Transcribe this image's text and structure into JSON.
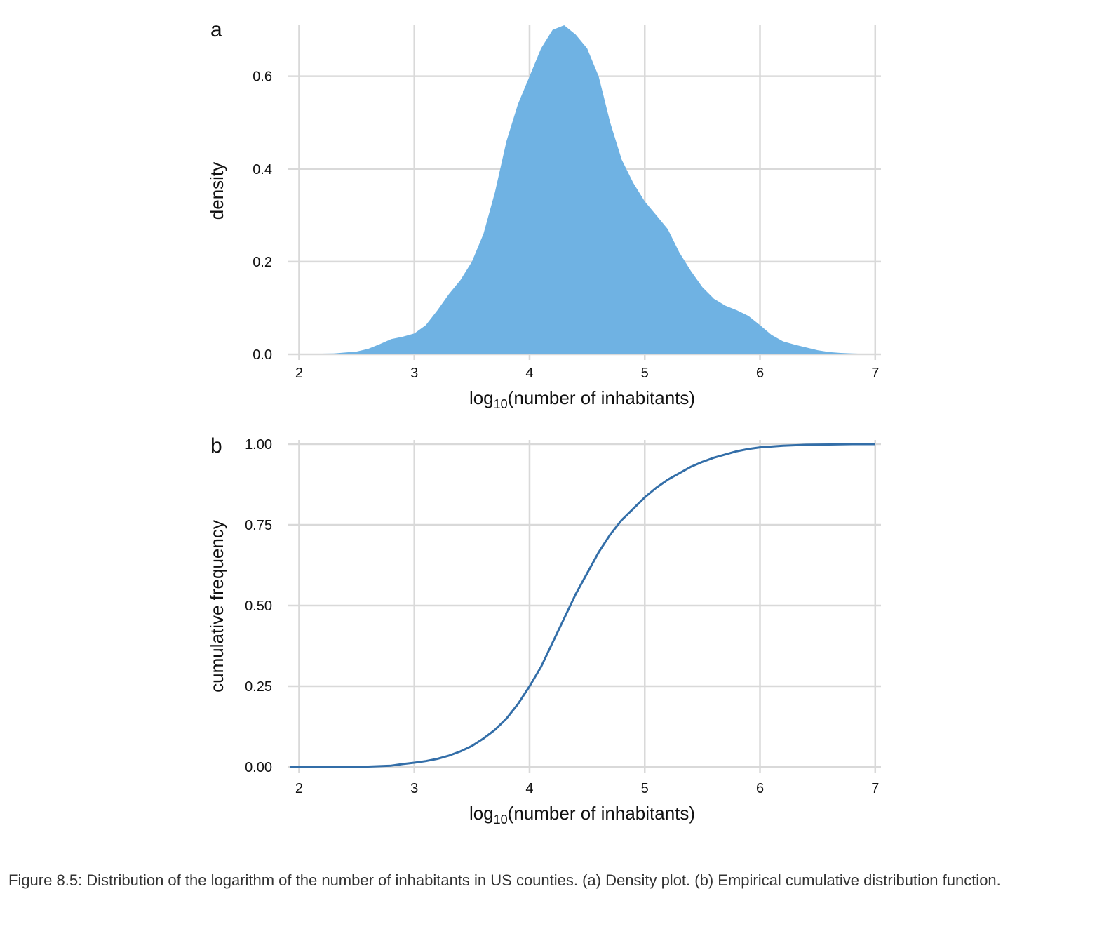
{
  "caption": "Figure 8.5: Distribution of the logarithm of the number of inhabitants in US counties. (a) Density plot. (b) Empirical cumulative distribution function.",
  "colors": {
    "fill": "#6fb2e3",
    "line": "#336ea8",
    "grid": "#d9d9d9"
  },
  "chart_data": [
    {
      "panel_label": "a",
      "type": "area",
      "xlabel_main": "log",
      "xlabel_sub": "10",
      "xlabel_rest": "(number of inhabitants)",
      "ylabel": "density",
      "xlim": [
        1.9,
        7.05
      ],
      "ylim": [
        0,
        0.71
      ],
      "xticks": [
        2,
        3,
        4,
        5,
        6,
        7
      ],
      "yticks": [
        0.0,
        0.2,
        0.4,
        0.6
      ],
      "ytick_labels": [
        "0.0",
        "0.2",
        "0.4",
        "0.6"
      ],
      "grid": true,
      "x": [
        1.9,
        2.1,
        2.3,
        2.5,
        2.6,
        2.7,
        2.8,
        2.9,
        3.0,
        3.1,
        3.2,
        3.3,
        3.4,
        3.5,
        3.6,
        3.7,
        3.8,
        3.9,
        4.0,
        4.1,
        4.2,
        4.3,
        4.4,
        4.5,
        4.6,
        4.7,
        4.8,
        4.9,
        5.0,
        5.1,
        5.2,
        5.3,
        5.4,
        5.5,
        5.6,
        5.7,
        5.8,
        5.9,
        6.0,
        6.1,
        6.2,
        6.3,
        6.4,
        6.5,
        6.6,
        6.7,
        6.8,
        6.9,
        7.0
      ],
      "y": [
        0.001,
        0.001,
        0.002,
        0.006,
        0.012,
        0.022,
        0.033,
        0.038,
        0.045,
        0.063,
        0.095,
        0.13,
        0.16,
        0.2,
        0.26,
        0.35,
        0.46,
        0.54,
        0.6,
        0.66,
        0.7,
        0.71,
        0.69,
        0.66,
        0.6,
        0.5,
        0.42,
        0.37,
        0.33,
        0.3,
        0.27,
        0.22,
        0.18,
        0.145,
        0.12,
        0.105,
        0.095,
        0.083,
        0.063,
        0.042,
        0.028,
        0.021,
        0.015,
        0.009,
        0.005,
        0.003,
        0.002,
        0.001,
        0.001
      ]
    },
    {
      "panel_label": "b",
      "type": "line",
      "xlabel_main": "log",
      "xlabel_sub": "10",
      "xlabel_rest": "(number of inhabitants)",
      "ylabel": "cumulative frequency",
      "xlim": [
        1.9,
        7.05
      ],
      "ylim": [
        0,
        1.0
      ],
      "xticks": [
        2,
        3,
        4,
        5,
        6,
        7
      ],
      "yticks": [
        0.0,
        0.25,
        0.5,
        0.75,
        1.0
      ],
      "ytick_labels": [
        "0.00",
        "0.25",
        "0.50",
        "0.75",
        "1.00"
      ],
      "grid": true,
      "x": [
        1.92,
        2.4,
        2.6,
        2.8,
        2.9,
        3.0,
        3.1,
        3.2,
        3.3,
        3.4,
        3.5,
        3.6,
        3.7,
        3.8,
        3.9,
        4.0,
        4.1,
        4.2,
        4.3,
        4.4,
        4.5,
        4.6,
        4.7,
        4.8,
        4.9,
        5.0,
        5.1,
        5.2,
        5.3,
        5.4,
        5.5,
        5.6,
        5.7,
        5.8,
        5.9,
        6.0,
        6.2,
        6.4,
        6.6,
        6.8,
        7.0
      ],
      "y": [
        0.0,
        0.0,
        0.001,
        0.004,
        0.009,
        0.013,
        0.018,
        0.025,
        0.035,
        0.048,
        0.065,
        0.088,
        0.115,
        0.15,
        0.195,
        0.25,
        0.31,
        0.385,
        0.46,
        0.535,
        0.6,
        0.665,
        0.72,
        0.765,
        0.8,
        0.835,
        0.865,
        0.89,
        0.91,
        0.93,
        0.945,
        0.958,
        0.968,
        0.978,
        0.985,
        0.99,
        0.995,
        0.998,
        0.999,
        1.0,
        1.0
      ]
    }
  ]
}
